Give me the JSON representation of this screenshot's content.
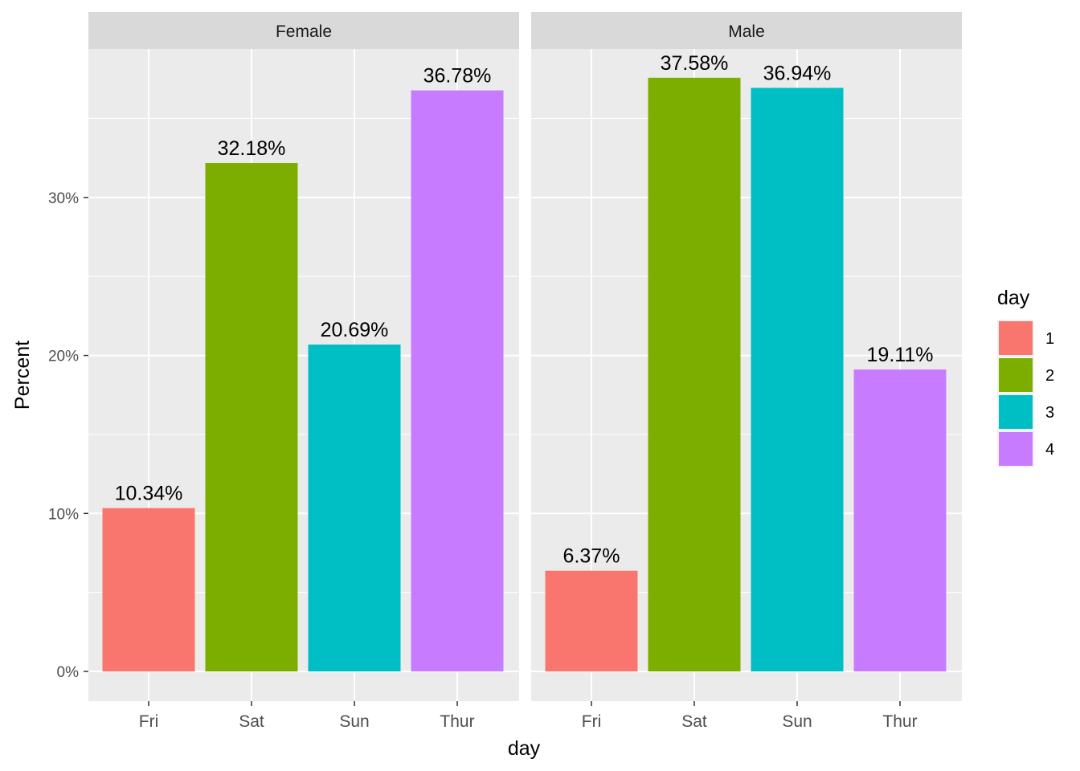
{
  "chart_data": {
    "type": "bar",
    "facet_variable": "sex",
    "xlabel": "day",
    "ylabel": "Percent",
    "categories": [
      "Fri",
      "Sat",
      "Sun",
      "Thur"
    ],
    "ylim": [
      0,
      39.6
    ],
    "yticks": [
      0,
      10,
      20,
      30
    ],
    "ytick_labels": [
      "0%",
      "10%",
      "20%",
      "30%"
    ],
    "grid": true,
    "legend": {
      "title": "day",
      "position": "right",
      "entries": [
        {
          "label": "1",
          "color": "#F8766D"
        },
        {
          "label": "2",
          "color": "#7CAE00"
        },
        {
          "label": "3",
          "color": "#00BFC4"
        },
        {
          "label": "4",
          "color": "#C77CFF"
        }
      ]
    },
    "panels": [
      {
        "label": "Female",
        "values": [
          10.34,
          32.18,
          20.69,
          36.78
        ],
        "labels": [
          "10.34%",
          "32.18%",
          "20.69%",
          "36.78%"
        ]
      },
      {
        "label": "Male",
        "values": [
          6.37,
          37.58,
          36.94,
          19.11
        ],
        "labels": [
          "6.37%",
          "37.58%",
          "36.94%",
          "19.11%"
        ]
      }
    ]
  }
}
